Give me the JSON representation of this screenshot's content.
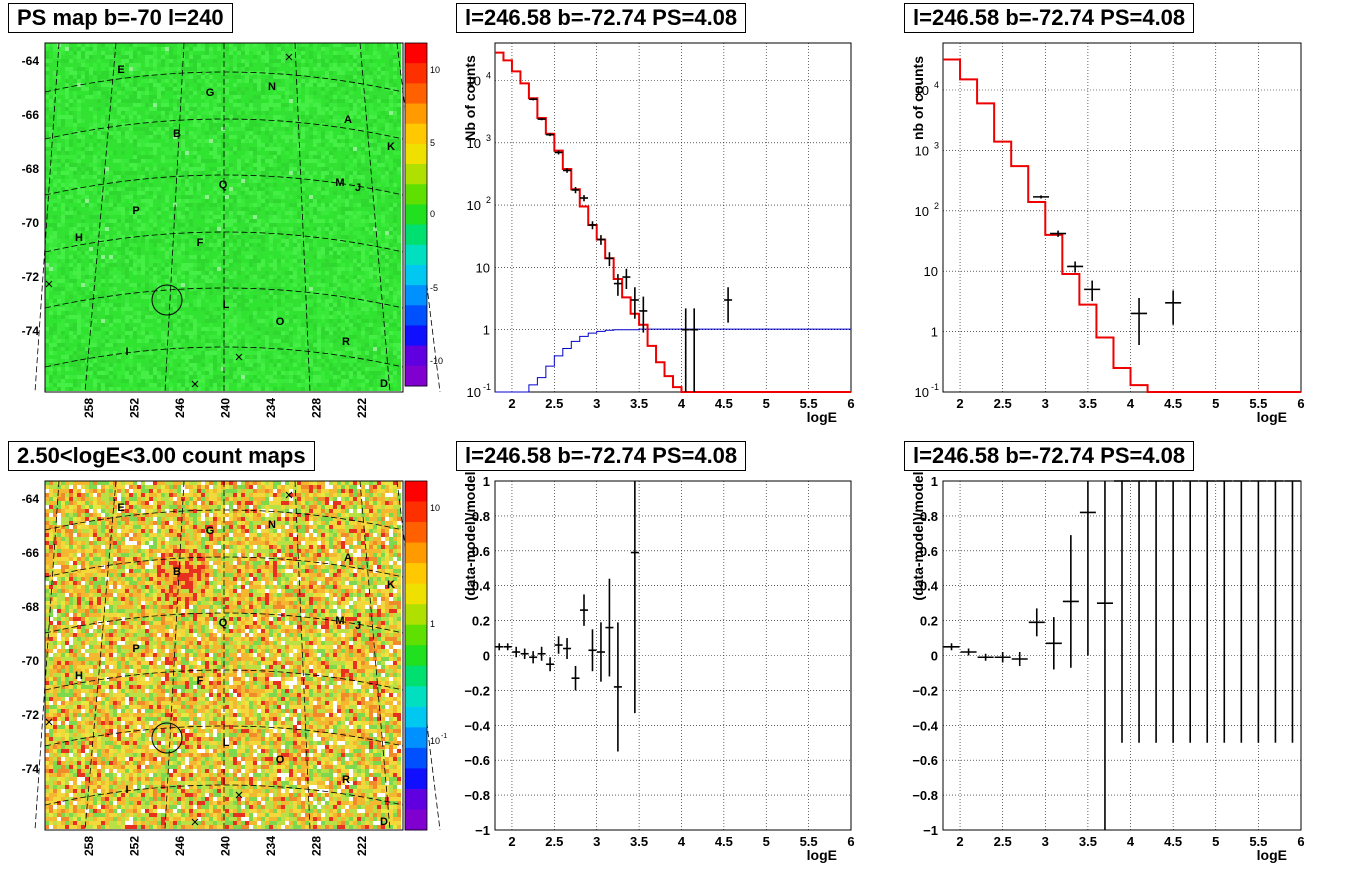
{
  "titles": {
    "ps_map": "PS map b=-70 l=240",
    "count_map": "2.50<logE<3.00 count maps",
    "spec1": "l=246.58 b=-72.74 PS=4.08",
    "spec2": "l=246.58 b=-72.74 PS=4.08",
    "res1": "l=246.58 b=-72.74 PS=4.08",
    "res2": "l=246.58 b=-72.74 PS=4.08"
  },
  "maps": {
    "lat_ticks": [
      "-64",
      "-66",
      "-68",
      "-70",
      "-72",
      "-74"
    ],
    "lon_ticks": [
      "258",
      "252",
      "246",
      "240",
      "234",
      "228",
      "222"
    ],
    "source_labels": [
      "E",
      "G",
      "N",
      "A",
      "K",
      "B",
      "Q",
      "M",
      "J",
      "P",
      "H",
      "F",
      "L",
      "O",
      "R",
      "I",
      "D"
    ],
    "ps_colorbar_ticks": [
      "10",
      "5",
      "0",
      "-5",
      "-10"
    ],
    "count_colorbar_ticks": [
      "10",
      "1",
      "10",
      "-1"
    ],
    "colors": {
      "ps_background": "#35e635",
      "count_background": "#f2c93a",
      "hotspot": "#e02020"
    }
  },
  "chart_data": [
    {
      "id": "spec1",
      "type": "line",
      "title": "l=246.58 b=-72.74 PS=4.08",
      "xlabel": "logE",
      "ylabel": "Nb of counts",
      "xlim": [
        1.8,
        6
      ],
      "ylim": [
        0.1,
        40000
      ],
      "log_y": true,
      "grid": true,
      "x_ticks": [
        2,
        2.5,
        3,
        3.5,
        4,
        4.5,
        5,
        5.5,
        6
      ],
      "y_ticks": [
        "10^-1",
        "1",
        "10",
        "10^2",
        "10^3",
        "10^4"
      ],
      "model_red": {
        "edges": [
          1.8,
          1.9,
          2.0,
          2.1,
          2.2,
          2.3,
          2.4,
          2.5,
          2.6,
          2.7,
          2.8,
          2.9,
          3.0,
          3.1,
          3.2,
          3.3,
          3.4,
          3.5,
          3.6,
          3.7,
          3.8,
          3.9,
          4.0,
          4.1,
          6.0
        ],
        "values": [
          28000,
          21000,
          14000,
          9000,
          5200,
          2500,
          1400,
          750,
          380,
          180,
          95,
          48,
          28,
          14,
          6.5,
          3.3,
          1.8,
          1.2,
          0.55,
          0.3,
          0.18,
          0.12,
          0.1,
          0.1
        ]
      },
      "model_blue": {
        "edges": [
          1.8,
          1.9,
          2.0,
          2.1,
          2.2,
          2.3,
          2.4,
          2.5,
          2.6,
          2.7,
          2.8,
          2.9,
          3.0,
          3.1,
          3.2,
          3.3,
          3.4,
          3.5,
          3.6,
          3.7,
          3.8,
          3.9,
          4.0,
          4.1,
          6.0
        ],
        "values": [
          0.1,
          0.1,
          0.1,
          0.1,
          0.13,
          0.17,
          0.26,
          0.38,
          0.5,
          0.65,
          0.78,
          0.88,
          0.94,
          0.98,
          1.0,
          1.0,
          1.0,
          1.02,
          1.02,
          1.02,
          1.02,
          1.02,
          1.02,
          1.02
        ]
      },
      "data_points": [
        {
          "x": 2.25,
          "y": 5000,
          "lo": 4800,
          "hi": 5200
        },
        {
          "x": 2.35,
          "y": 2400,
          "lo": 2300,
          "hi": 2500
        },
        {
          "x": 2.45,
          "y": 1350,
          "lo": 1280,
          "hi": 1420
        },
        {
          "x": 2.55,
          "y": 700,
          "lo": 650,
          "hi": 750
        },
        {
          "x": 2.65,
          "y": 360,
          "lo": 330,
          "hi": 390
        },
        {
          "x": 2.75,
          "y": 175,
          "lo": 155,
          "hi": 195
        },
        {
          "x": 2.85,
          "y": 130,
          "lo": 115,
          "hi": 145
        },
        {
          "x": 2.95,
          "y": 48,
          "lo": 41,
          "hi": 55
        },
        {
          "x": 3.05,
          "y": 28,
          "lo": 23,
          "hi": 33
        },
        {
          "x": 3.15,
          "y": 14,
          "lo": 10.5,
          "hi": 17.5
        },
        {
          "x": 3.25,
          "y": 5.5,
          "lo": 3.5,
          "hi": 7.8
        },
        {
          "x": 3.35,
          "y": 7,
          "lo": 4.5,
          "hi": 9.5
        },
        {
          "x": 3.45,
          "y": 3,
          "lo": 1.5,
          "hi": 4.8
        },
        {
          "x": 3.55,
          "y": 2,
          "lo": 0.9,
          "hi": 3.4
        },
        {
          "x": 4.05,
          "y": 1,
          "lo": 0.1,
          "hi": 2.2
        },
        {
          "x": 4.15,
          "y": 1,
          "lo": 0.1,
          "hi": 2.2
        },
        {
          "x": 4.55,
          "y": 3,
          "lo": 1.3,
          "hi": 4.8
        }
      ]
    },
    {
      "id": "spec2",
      "type": "line",
      "title": "l=246.58 b=-72.74 PS=4.08",
      "xlabel": "logE",
      "ylabel": "nb of counts",
      "xlim": [
        1.8,
        6
      ],
      "ylim": [
        0.1,
        60000
      ],
      "log_y": true,
      "grid": true,
      "x_ticks": [
        2,
        2.5,
        3,
        3.5,
        4,
        4.5,
        5,
        5.5,
        6
      ],
      "y_ticks": [
        "10^-1",
        "1",
        "10",
        "10^2",
        "10^3",
        "10^4"
      ],
      "model_red": {
        "edges": [
          1.8,
          2.0,
          2.2,
          2.4,
          2.6,
          2.8,
          3.0,
          3.2,
          3.4,
          3.6,
          3.8,
          4.0,
          4.2,
          6.0
        ],
        "values": [
          32000,
          15000,
          6000,
          1400,
          550,
          140,
          40,
          9,
          2.8,
          0.8,
          0.25,
          0.13,
          0.1
        ]
      },
      "data_points": [
        {
          "x": 2.95,
          "y": 170,
          "lo": 160,
          "hi": 180
        },
        {
          "x": 3.15,
          "y": 42,
          "lo": 37,
          "hi": 47
        },
        {
          "x": 3.35,
          "y": 12,
          "lo": 9.5,
          "hi": 14.5
        },
        {
          "x": 3.55,
          "y": 5,
          "lo": 3.2,
          "hi": 7
        },
        {
          "x": 4.1,
          "y": 2,
          "lo": 0.6,
          "hi": 3.6
        },
        {
          "x": 4.5,
          "y": 3,
          "lo": 1.3,
          "hi": 4.8
        }
      ]
    },
    {
      "id": "res1",
      "type": "scatter",
      "title": "l=246.58 b=-72.74 PS=4.08",
      "xlabel": "logE",
      "ylabel": "(data-model)/model",
      "xlim": [
        1.8,
        6
      ],
      "ylim": [
        -1,
        1
      ],
      "grid": true,
      "x_ticks": [
        2,
        2.5,
        3,
        3.5,
        4,
        4.5,
        5,
        5.5,
        6
      ],
      "y_ticks": [
        -1,
        -0.8,
        -0.6,
        -0.4,
        -0.2,
        0,
        0.2,
        0.4,
        0.6,
        0.8,
        1
      ],
      "points": [
        {
          "x": 1.85,
          "y": 0.05,
          "err": 0.02
        },
        {
          "x": 1.95,
          "y": 0.05,
          "err": 0.02
        },
        {
          "x": 2.05,
          "y": 0.02,
          "err": 0.03
        },
        {
          "x": 2.15,
          "y": 0.01,
          "err": 0.03
        },
        {
          "x": 2.25,
          "y": -0.01,
          "err": 0.035
        },
        {
          "x": 2.35,
          "y": 0.01,
          "err": 0.04
        },
        {
          "x": 2.45,
          "y": -0.05,
          "err": 0.04
        },
        {
          "x": 2.55,
          "y": 0.06,
          "err": 0.05
        },
        {
          "x": 2.65,
          "y": 0.04,
          "err": 0.06
        },
        {
          "x": 2.75,
          "y": -0.13,
          "err": 0.07
        },
        {
          "x": 2.85,
          "y": 0.26,
          "err": 0.09
        },
        {
          "x": 2.95,
          "y": 0.03,
          "err": 0.12
        },
        {
          "x": 3.05,
          "y": 0.02,
          "err": 0.17
        },
        {
          "x": 3.15,
          "y": 0.16,
          "err": 0.28
        },
        {
          "x": 3.25,
          "y": -0.18,
          "err": 0.37
        },
        {
          "x": 3.45,
          "y": 0.59,
          "err": 0.92
        }
      ]
    },
    {
      "id": "res2",
      "type": "scatter",
      "title": "l=246.58 b=-72.74 PS=4.08",
      "xlabel": "logE",
      "ylabel": "(data-model)/model",
      "xlim": [
        1.8,
        6
      ],
      "ylim": [
        -1,
        1
      ],
      "grid": true,
      "x_ticks": [
        2,
        2.5,
        3,
        3.5,
        4,
        4.5,
        5,
        5.5,
        6
      ],
      "y_ticks": [
        -1,
        -0.8,
        -0.6,
        -0.4,
        -0.2,
        0,
        0.2,
        0.4,
        0.6,
        0.8,
        1
      ],
      "points": [
        {
          "x": 1.9,
          "y": 0.05,
          "err": 0.02
        },
        {
          "x": 2.1,
          "y": 0.02,
          "err": 0.02
        },
        {
          "x": 2.3,
          "y": -0.01,
          "err": 0.02
        },
        {
          "x": 2.5,
          "y": -0.01,
          "err": 0.03
        },
        {
          "x": 2.7,
          "y": -0.02,
          "err": 0.04
        },
        {
          "x": 2.9,
          "y": 0.19,
          "err": 0.08
        },
        {
          "x": 3.1,
          "y": 0.07,
          "err": 0.15
        },
        {
          "x": 3.3,
          "y": 0.31,
          "err": 0.38
        },
        {
          "x": 3.5,
          "y": 0.82,
          "err": 0.82
        },
        {
          "x": 3.7,
          "y": 0.3,
          "err": 1.5
        },
        {
          "x": 3.9,
          "y": 1.0,
          "err": 1.5
        },
        {
          "x": 4.1,
          "y": 1.0,
          "err": 1.5
        },
        {
          "x": 4.3,
          "y": 1.0,
          "err": 1.5
        },
        {
          "x": 4.5,
          "y": 1.0,
          "err": 1.5
        },
        {
          "x": 4.7,
          "y": 1.0,
          "err": 1.5
        },
        {
          "x": 4.9,
          "y": 1.0,
          "err": 1.5
        },
        {
          "x": 5.1,
          "y": 1.0,
          "err": 1.5
        },
        {
          "x": 5.3,
          "y": 1.0,
          "err": 1.5
        },
        {
          "x": 5.5,
          "y": 1.0,
          "err": 1.5
        },
        {
          "x": 5.7,
          "y": 1.0,
          "err": 1.5
        },
        {
          "x": 5.9,
          "y": 1.0,
          "err": 1.5
        }
      ]
    }
  ]
}
